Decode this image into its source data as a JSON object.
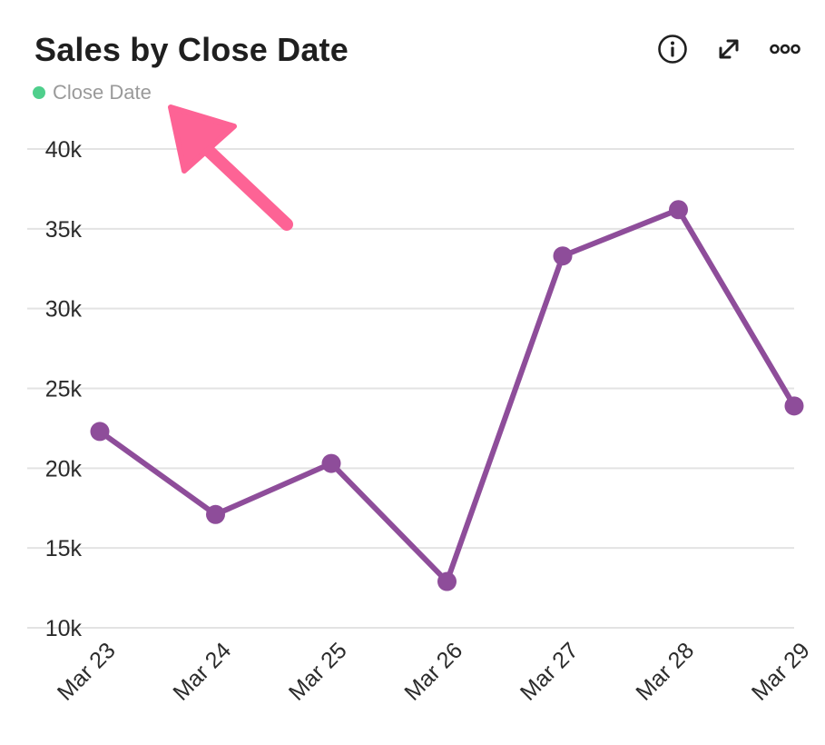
{
  "widget": {
    "title": "Sales by Close Date",
    "icons": {
      "info": "info-icon",
      "expand": "expand-icon",
      "more": "more-options-icon"
    }
  },
  "chart_data": {
    "type": "line",
    "title": "Sales by Close Date",
    "xlabel": "",
    "ylabel": "",
    "categories": [
      "Mar 23",
      "Mar 24",
      "Mar 25",
      "Mar 26",
      "Mar 27",
      "Mar 28",
      "Mar 29"
    ],
    "series": [
      {
        "name": "Close Date",
        "values": [
          22300,
          17100,
          20300,
          12900,
          33300,
          36200,
          23900
        ]
      }
    ],
    "ylim": [
      10000,
      40000
    ],
    "yticks": [
      10000,
      15000,
      20000,
      25000,
      30000,
      35000,
      40000
    ],
    "ytick_labels": [
      "10k",
      "15k",
      "20k",
      "25k",
      "30k",
      "35k",
      "40k"
    ],
    "grid": true,
    "legend_position": "top-left",
    "colors": {
      "line": "#8e4d9a",
      "legend_dot": "#4fcf8c",
      "grid": "#e3e3e3",
      "annotation_arrow": "#fd6395"
    }
  }
}
